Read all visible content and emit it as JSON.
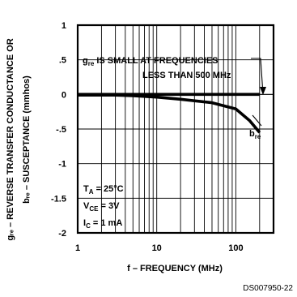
{
  "chart_data": {
    "type": "line",
    "x_axis": {
      "label": "f – FREQUENCY (MHz)",
      "scale": "log",
      "range": [
        1,
        300
      ],
      "ticks": [
        1,
        10,
        100
      ],
      "tick_labels": [
        "1",
        "10",
        "100"
      ]
    },
    "y_axis": {
      "label_line1": "gᵣₑ – REVERSE TRANSFER CONDUCTANCE OR",
      "label_line2": "bᵣₑ – SUSCEPTANCE (mmhos)",
      "range": [
        -2,
        1
      ],
      "ticks": [
        1,
        0.5,
        0,
        -0.5,
        -1,
        -1.5,
        -2
      ],
      "tick_labels": [
        "1",
        ".5",
        "0",
        "-.5",
        "-1",
        "-1.5",
        "-2"
      ]
    },
    "grid": true,
    "series": [
      {
        "name": "g_re",
        "x": [
          1,
          2,
          5,
          10,
          20,
          50,
          100,
          200
        ],
        "y": [
          0,
          0,
          0,
          0,
          0,
          0,
          0,
          0
        ]
      },
      {
        "name": "b_re",
        "x": [
          1,
          3,
          5,
          10,
          20,
          50,
          100,
          150,
          200
        ],
        "y": [
          -0.01,
          -0.01,
          -0.02,
          -0.04,
          -0.07,
          -0.12,
          -0.21,
          -0.38,
          -0.55
        ]
      }
    ],
    "annotations": {
      "gre_note_line1": "g",
      "gre_note_sub": "re",
      "gre_note_rest": " IS SMALL AT FREQUENCIES",
      "gre_note_line2": "LESS THAN 500 MHz",
      "bre_label": "b",
      "bre_sub": "re",
      "ta_main": "T",
      "ta_sub": "A",
      "ta_value": " = 25°C",
      "vce_main": "V",
      "vce_sub": "CE",
      "vce_value": " = 3V",
      "ic_main": "I",
      "ic_sub": "C",
      "ic_value": " = 1 mA"
    },
    "figure_code": "DS007950-22"
  }
}
